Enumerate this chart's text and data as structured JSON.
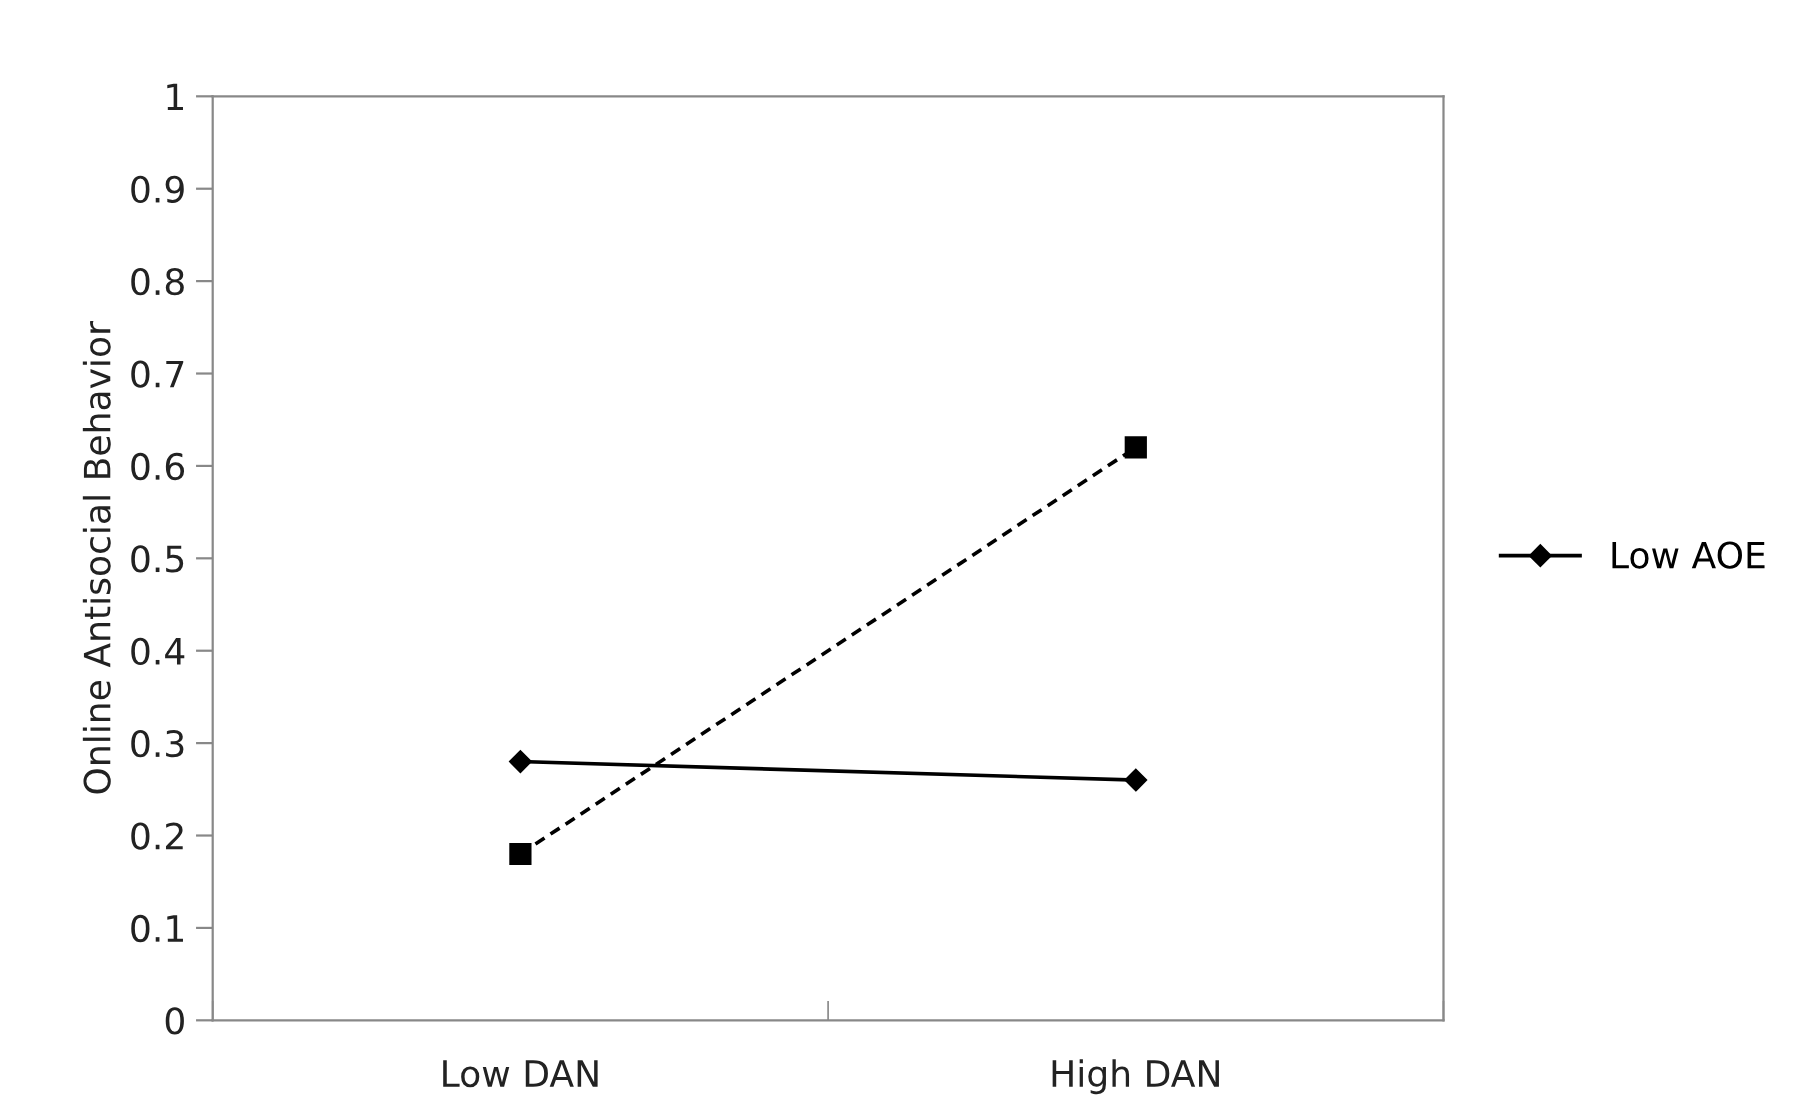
{
  "chart_data": {
    "type": "line",
    "ylabel": "Online Antisocial Behavior",
    "categories": [
      "Low DAN",
      "High DAN"
    ],
    "series": [
      {
        "name": "Low AOE",
        "color": "#000000",
        "values": [
          0.28,
          0.26
        ],
        "marker": "diamond",
        "line_style": "solid"
      },
      {
        "color": "#000000",
        "values": [
          0.18,
          0.62
        ],
        "marker": "square",
        "line_style": "dashed"
      }
    ],
    "ylim": [
      0,
      1
    ],
    "yticks": [
      0,
      0.1,
      0.2,
      0.3,
      0.4,
      0.5,
      0.6,
      0.7,
      0.8,
      0.9,
      1
    ],
    "grid": false,
    "legend": "right"
  }
}
